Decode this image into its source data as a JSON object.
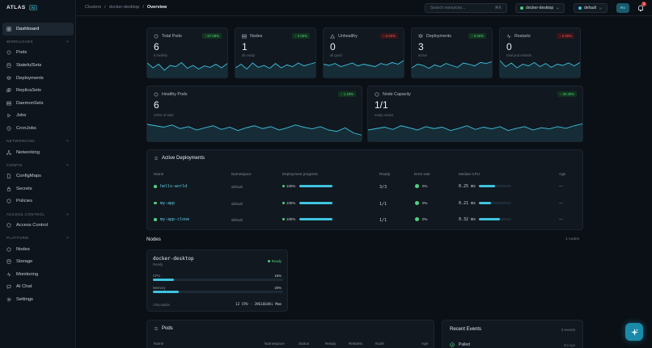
{
  "brand": {
    "name": "ATLAS",
    "badge": "AI"
  },
  "nav": {
    "dashboard": "Dashboard",
    "workloads_title": "WORKLOADS",
    "pods": "Pods",
    "statefulsets": "StatefulSets",
    "deployments": "Deployments",
    "replicasets": "ReplicaSets",
    "daemonsets": "DaemonSets",
    "jobs": "Jobs",
    "cronjobs": "CronJobs",
    "networking_title": "NETWORKING",
    "networking": "Networking",
    "config_title": "CONFIG",
    "configmaps": "ConfigMaps",
    "secrets": "Secrets",
    "policies": "Policies",
    "access_title": "ACCESS CONTROL",
    "access": "Access Control",
    "platform_title": "PLATFORM",
    "nodes": "Nodes",
    "storage": "Storage",
    "monitoring": "Monitoring",
    "aichat": "AI Chat",
    "settings": "Settings"
  },
  "topbar": {
    "crumb1": "Clusters",
    "sep": "/",
    "crumb2": "docker-desktop",
    "crumb3": "Overview",
    "search_placeholder": "Search resources...",
    "search_kbd": "⌘K",
    "context": "docker-desktop",
    "namespace": "default",
    "avatar": "Ro",
    "notifications": "3"
  },
  "stats": [
    {
      "title": "Total Pods",
      "value": "6",
      "sub": "6 healthy",
      "delta": "↑ 87.08%",
      "trend": "up"
    },
    {
      "title": "Nodes",
      "value": "1",
      "sub": "all ready",
      "delta": "↑ 0.00%",
      "trend": "up"
    },
    {
      "title": "Unhealthy",
      "value": "0",
      "sub": "all good",
      "delta": "↓ 0.00%",
      "trend": "down"
    },
    {
      "title": "Deployments",
      "value": "3",
      "sub": "active",
      "delta": "↑ 0.00%",
      "trend": "up"
    },
    {
      "title": "Restarts",
      "value": "0",
      "sub": "total pod restarts",
      "delta": "↓ 0.00%",
      "trend": "down"
    }
  ],
  "wide_stats": [
    {
      "title": "Healthy Pods",
      "value": "6",
      "sub": "100% of total",
      "delta": "↑ 1.19%"
    },
    {
      "title": "Node Capacity",
      "value": "1/1",
      "sub": "ready nodes",
      "delta": "↑ 30.30%"
    }
  ],
  "deployments": {
    "title": "Active Deployments",
    "headers": [
      "Name",
      "Namespace",
      "Deployment progress",
      "Ready",
      "Error rate",
      "Median CPU",
      "Age"
    ],
    "rows": [
      {
        "name": "hello-world",
        "namespace": "default",
        "progress": "100%",
        "progress_value": 100,
        "ready": "3/3",
        "error": "0%",
        "cpu": "0.25 ms",
        "cpu_value": 0.5,
        "age": "—"
      },
      {
        "name": "my-app",
        "namespace": "default",
        "progress": "100%",
        "progress_value": 100,
        "ready": "1/1",
        "error": "0%",
        "cpu": "0.21 ms",
        "cpu_value": 0.38,
        "age": "—"
      },
      {
        "name": "my-app-clone",
        "namespace": "default",
        "progress": "100%",
        "progress_value": 100,
        "ready": "1/1",
        "error": "0%",
        "cpu": "0.32 ms",
        "cpu_value": 0.64,
        "age": "—"
      }
    ]
  },
  "nodes": {
    "title": "Nodes",
    "count": "1 nodes",
    "node": {
      "name": "docker-desktop",
      "status_sub": "Ready",
      "badge": "Ready",
      "cpu_label": "CPU",
      "cpu": "16%",
      "cpu_value": 16,
      "mem_label": "Memory",
      "mem": "20%",
      "mem_value": 20,
      "alloc_label": "Allocatable",
      "alloc": "12 CPU · 3961664Ki Mem"
    }
  },
  "pods": {
    "title": "Pods",
    "headers": [
      "Name",
      "Namespace",
      "Status",
      "Ready",
      "Restarts",
      "Node",
      "Age"
    ]
  },
  "events": {
    "title": "Recent Events",
    "count": "3 events",
    "first": "Pulled",
    "first_time": "5m ago"
  },
  "colors": {
    "accent": "#3ec3df",
    "ok": "#4fd17c",
    "bad": "#e25b5b"
  }
}
